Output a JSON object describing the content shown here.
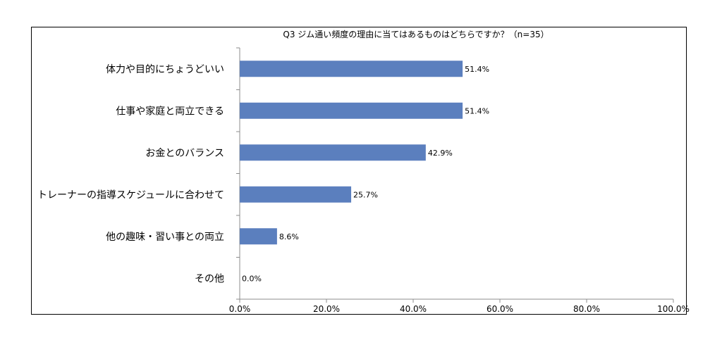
{
  "chart_data": {
    "type": "bar",
    "orientation": "horizontal",
    "title": "Q3 ジム通い頻度の理由に当てはあるものはどちらですか？（n=35）",
    "categories": [
      "体力や目的にちょうどいい",
      "仕事や家庭と両立できる",
      "お金とのバランス",
      "トレーナーの指導スケジュールに合わせて",
      "他の趣味・習い事との両立",
      "その他"
    ],
    "values": [
      51.4,
      51.4,
      42.9,
      25.7,
      8.6,
      0.0
    ],
    "value_labels": [
      "51.4%",
      "51.4%",
      "42.9%",
      "25.7%",
      "8.6%",
      "0.0%"
    ],
    "xlim": [
      0,
      100
    ],
    "x_ticks": [
      "0.0%",
      "20.0%",
      "40.0%",
      "60.0%",
      "80.0%",
      "100.0%"
    ],
    "x_tick_values": [
      0,
      20,
      40,
      60,
      80,
      100
    ],
    "grid": false,
    "bar_color": "#5b7fbe"
  }
}
